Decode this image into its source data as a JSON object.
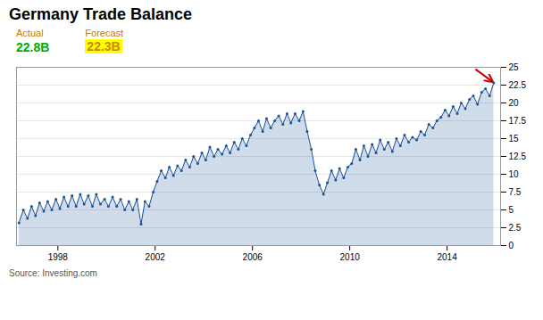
{
  "chart_data": {
    "type": "area",
    "title": "Germany Trade Balance",
    "annotations": [
      "Actual",
      "22.8B",
      "Forecast",
      "22.3B",
      "Source: Investing.com"
    ],
    "color": "#1a5296",
    "x": [
      1996.4,
      1996.58,
      1996.75,
      1996.92,
      1997.08,
      1997.25,
      1997.42,
      1997.58,
      1997.75,
      1997.92,
      1998.08,
      1998.25,
      1998.42,
      1998.58,
      1998.75,
      1998.92,
      1999.08,
      1999.25,
      1999.42,
      1999.58,
      1999.75,
      1999.92,
      2000.08,
      2000.25,
      2000.42,
      2000.58,
      2000.75,
      2000.92,
      2001.08,
      2001.25,
      2001.42,
      2001.58,
      2001.75,
      2001.92,
      2002.08,
      2002.25,
      2002.42,
      2002.58,
      2002.75,
      2002.92,
      2003.08,
      2003.25,
      2003.42,
      2003.58,
      2003.75,
      2003.92,
      2004.08,
      2004.25,
      2004.42,
      2004.58,
      2004.75,
      2004.92,
      2005.08,
      2005.25,
      2005.42,
      2005.58,
      2005.75,
      2005.92,
      2006.08,
      2006.25,
      2006.42,
      2006.58,
      2006.75,
      2006.92,
      2007.08,
      2007.25,
      2007.42,
      2007.58,
      2007.75,
      2007.92,
      2008.08,
      2008.25,
      2008.42,
      2008.58,
      2008.75,
      2008.92,
      2009.08,
      2009.25,
      2009.42,
      2009.58,
      2009.75,
      2009.92,
      2010.08,
      2010.25,
      2010.42,
      2010.58,
      2010.75,
      2010.92,
      2011.08,
      2011.25,
      2011.42,
      2011.58,
      2011.75,
      2011.92,
      2012.08,
      2012.25,
      2012.42,
      2012.58,
      2012.75,
      2012.92,
      2013.08,
      2013.25,
      2013.42,
      2013.58,
      2013.75,
      2013.92,
      2014.08,
      2014.25,
      2014.42,
      2014.58,
      2014.75,
      2014.92,
      2015.08,
      2015.25,
      2015.42,
      2015.58,
      2015.75,
      2015.92
    ],
    "values": [
      3.2,
      5.0,
      3.8,
      5.5,
      4.2,
      6.0,
      4.8,
      6.2,
      5.0,
      6.5,
      5.2,
      6.8,
      5.5,
      7.0,
      5.5,
      7.2,
      5.8,
      7.0,
      5.5,
      7.2,
      5.8,
      6.5,
      5.5,
      6.8,
      5.5,
      6.5,
      5.0,
      6.2,
      5.0,
      6.5,
      3.0,
      6.2,
      5.5,
      7.5,
      9.0,
      10.5,
      9.5,
      11.0,
      9.8,
      11.2,
      10.5,
      12.0,
      11.0,
      12.5,
      11.5,
      13.0,
      12.0,
      13.8,
      12.5,
      13.5,
      12.8,
      14.0,
      13.0,
      14.5,
      13.5,
      15.0,
      14.0,
      15.5,
      16.5,
      17.5,
      16.0,
      17.8,
      16.5,
      17.5,
      18.2,
      17.0,
      18.5,
      17.2,
      18.5,
      17.5,
      18.8,
      16.0,
      13.5,
      10.5,
      8.5,
      7.2,
      8.8,
      10.5,
      9.2,
      10.8,
      9.5,
      11.0,
      11.5,
      13.5,
      12.0,
      14.0,
      12.5,
      14.2,
      13.0,
      14.8,
      13.5,
      14.5,
      13.2,
      15.0,
      14.0,
      15.5,
      14.5,
      15.2,
      14.8,
      16.0,
      15.5,
      17.0,
      16.5,
      17.5,
      18.0,
      19.0,
      18.2,
      19.5,
      18.5,
      20.0,
      19.2,
      20.5,
      21.0,
      19.8,
      21.5,
      22.0,
      21.0,
      22.8
    ],
    "xlim": [
      1996.3,
      2016.2
    ],
    "xticks": [
      1998,
      2002,
      2006,
      2010,
      2014
    ],
    "ylim": [
      0,
      25
    ],
    "yticks": [
      0,
      2.5,
      5,
      7.5,
      10,
      12.5,
      15,
      17.5,
      20,
      22.5,
      25
    ],
    "grid": true
  }
}
